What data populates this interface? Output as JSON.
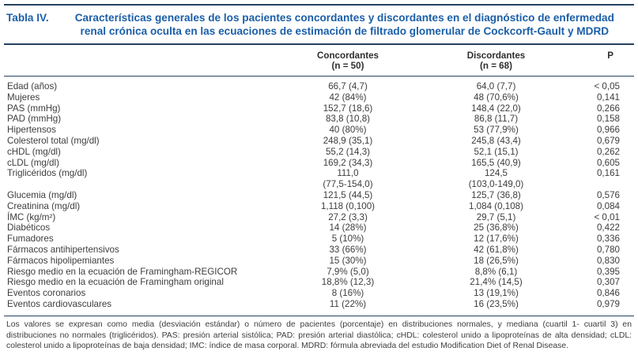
{
  "title": {
    "label": "Tabla IV.",
    "text_line1": "Características generales de los pacientes concordantes y discordantes en el diagnóstico de enfermedad",
    "text_line2": "renal crónica oculta en las ecuaciones de estimación de filtrado glomerular de Cockcorft-Gault y MDRD"
  },
  "columns": {
    "group1_name": "Concordantes",
    "group1_n": "(n = 50)",
    "group2_name": "Discordantes",
    "group2_n": "(n = 68)",
    "p_label": "P"
  },
  "rows": [
    {
      "label": "Edad (años)",
      "concordantes": "66,7 (4,7)",
      "discordantes": "64,0 (7,7)",
      "p": "< 0,05"
    },
    {
      "label": "Mujeres",
      "concordantes": "42 (84%)",
      "discordantes": "48 (70,6%)",
      "p": "0,141"
    },
    {
      "label": "PAS (mmHg)",
      "concordantes": "152,7 (18,6)",
      "discordantes": "148,4 (22,0)",
      "p": "0,266"
    },
    {
      "label": "PAD (mmHg)",
      "concordantes": "83,8 (10,8)",
      "discordantes": "86,8 (11,7)",
      "p": "0,158"
    },
    {
      "label": "Hipertensos",
      "concordantes": "40 (80%)",
      "discordantes": "53 (77,9%)",
      "p": "0,966"
    },
    {
      "label": "Colesterol total (mg/dl)",
      "concordantes": "248,9 (35,1)",
      "discordantes": "245,8 (43,4)",
      "p": "0,679"
    },
    {
      "label": "cHDL (mg/dl)",
      "concordantes": "55,2 (14,3)",
      "discordantes": "52,1 (15,1)",
      "p": "0,262"
    },
    {
      "label": "cLDL (mg/dl)",
      "concordantes": "169,2 (34,3)",
      "discordantes": "165,5 (40,9)",
      "p": "0,605"
    },
    {
      "label": "Triglicéridos (mg/dl)",
      "concordantes": [
        "111,0",
        "(77,5-154,0)"
      ],
      "discordantes": [
        "124,5",
        "(103,0-149,0)"
      ],
      "p": "0,161"
    },
    {
      "label": "Glucemia (mg/dl)",
      "concordantes": "121,5 (44,5)",
      "discordantes": "125,7 (36,8)",
      "p": "0,576"
    },
    {
      "label": "Creatinina (mg/dl)",
      "concordantes": "1,118 (0,100)",
      "discordantes": "1,084 (0,108)",
      "p": "0,084"
    },
    {
      "label": "ÍMC (kg/m²)",
      "concordantes": "27,2 (3,3)",
      "discordantes": "29,7 (5,1)",
      "p": "< 0,01"
    },
    {
      "label": "Diabéticos",
      "concordantes": "14 (28%)",
      "discordantes": "25 (36,8%)",
      "p": "0,422"
    },
    {
      "label": "Fumadores",
      "concordantes": "5 (10%)",
      "discordantes": "12 (17,6%)",
      "p": "0,336"
    },
    {
      "label": "Fármacos antihipertensivos",
      "concordantes": "33 (66%)",
      "discordantes": "42 (61,8%)",
      "p": "0,780"
    },
    {
      "label": "Fármacos hipolipemiantes",
      "concordantes": "15 (30%)",
      "discordantes": "18 (26,5%)",
      "p": "0,830"
    },
    {
      "label": "Riesgo medio en la ecuación de Framingham-REGICOR",
      "concordantes": "7,9% (5,0)",
      "discordantes": "8,8% (6,1)",
      "p": "0,395"
    },
    {
      "label": "Riesgo medio en la ecuación de Framingham original",
      "concordantes": "18,8% (12,3)",
      "discordantes": "21,4% (14,5)",
      "p": "0,307"
    },
    {
      "label": "Eventos coronarios",
      "concordantes": "8 (16%)",
      "discordantes": "13 (19,1%)",
      "p": "0,846"
    },
    {
      "label": "Eventos cardiovasculares",
      "concordantes": "11 (22%)",
      "discordantes": "16 (23,5%)",
      "p": "0,979"
    }
  ],
  "footnote": "Los valores se expresan como media (desviación estándar) o número de pacientes (porcentaje) en distribuciones normales, y mediana (cuartil 1- cuartil 3) en distribuciones no normales (triglicéridos). PAS: presión arterial sistólica; PAD: presión arterial diastólica; cHDL: colesterol unido a lipoproteínas de alta densidad; cLDL: colesterol unido a lipoproteínas de baja densidad; IMC: índice de masa corporal. MDRD: fórmula abreviada del estudio Modification Diet of Renal Disease.",
  "colors": {
    "title_blue": "#1b5fa8",
    "rule": "#24425f",
    "body_text": "#3d3d3d"
  }
}
